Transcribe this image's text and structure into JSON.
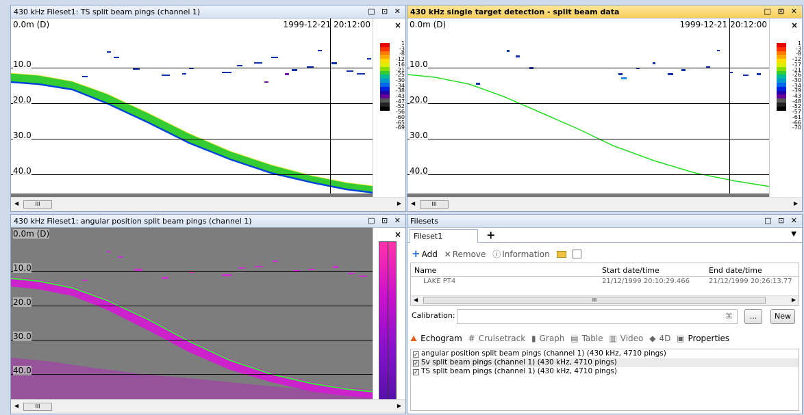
{
  "panels": {
    "ts": {
      "title": "430 kHz Fileset1: TS split beam pings (channel 1)",
      "depth_start": "0.0m (D)",
      "datetime": "1999-12-21 20:12:00",
      "depths": [
        "10.0",
        "20.0",
        "30.0",
        "40.0"
      ],
      "scale_labels": [
        "1",
        "-3",
        "-8",
        "-12",
        "-16",
        "-21",
        "-25",
        "-30",
        "-34",
        "-38",
        "-43",
        "-47",
        "-52",
        "-56",
        "-60",
        "-65",
        "-69"
      ]
    },
    "std": {
      "title": "430 kHz single target detection - split beam data",
      "depth_start": "0.0m (D)",
      "datetime": "1999-12-21 20:12:00",
      "depths": [
        "10.0",
        "20.0",
        "30.0",
        "40.0"
      ],
      "scale_labels": [
        "1",
        "-3",
        "-8",
        "-12",
        "-17",
        "-21",
        "-26",
        "-30",
        "-34",
        "-39",
        "-43",
        "-48",
        "-52",
        "-57",
        "-61",
        "-66",
        "-70"
      ]
    },
    "ang": {
      "title": "430 kHz Fileset1: angular position split beam pings (channel 1)",
      "depth_start": "0.0m (D)",
      "depths": [
        "10.0",
        "20.0",
        "30.0",
        "40.0"
      ]
    }
  },
  "colorscale": [
    "#e60000",
    "#ff3300",
    "#ff7700",
    "#ffaa00",
    "#ffdd00",
    "#ddee00",
    "#88dd00",
    "#33cc33",
    "#00bb99",
    "#0099cc",
    "#0066ee",
    "#0022dd",
    "#2200aa",
    "#660099",
    "#555555",
    "#222222",
    "#000000"
  ],
  "scroll_thumb": "III",
  "filesets": {
    "title": "Filesets",
    "tab": "Fileset1",
    "add_tab": "+",
    "toolbar": {
      "add": "Add",
      "remove": "Remove",
      "information": "Information"
    },
    "columns": {
      "name": "Name",
      "start": "Start date/time",
      "end": "End date/time"
    },
    "rows": [
      {
        "name": "LAKE PT4",
        "start": "21/12/1999 20:10:29.466",
        "end": "21/12/1999 20:26:13.77"
      }
    ],
    "calibration_label": "Calibration:",
    "browse": "...",
    "new": "New",
    "view_tabs": [
      "Echogram",
      "Cruisetrack",
      "Graph",
      "Table",
      "Video",
      "4D",
      "Properties"
    ],
    "variables": [
      "angular position split beam pings (channel 1) (430 kHz, 4710 pings)",
      "Sv split beam pings (channel 1) (430 kHz, 4710 pings)",
      "TS split beam pings (channel 1) (430 kHz, 4710 pings)"
    ]
  }
}
